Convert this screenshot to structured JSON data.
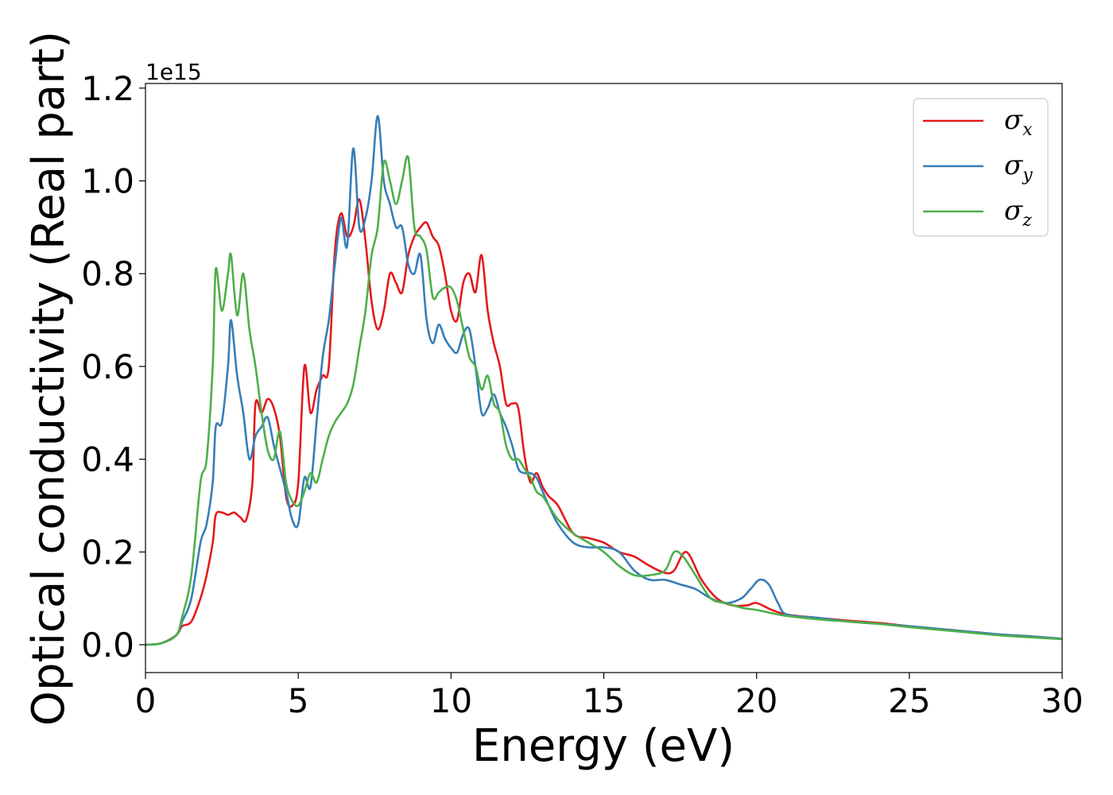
{
  "chart_data": {
    "type": "line",
    "title": "",
    "xlabel": "Energy (eV)",
    "ylabel": "Optical conductivity (Real part)",
    "y_offset_label": "1e15",
    "xlim": [
      0,
      30
    ],
    "ylim": [
      -0.06,
      1.21
    ],
    "xticks": [
      0,
      5,
      10,
      15,
      20,
      25,
      30
    ],
    "xtick_labels": [
      "0",
      "5",
      "10",
      "15",
      "20",
      "25",
      "30"
    ],
    "yticks": [
      0.0,
      0.2,
      0.4,
      0.6,
      0.8,
      1.0,
      1.2
    ],
    "ytick_labels": [
      "0.0",
      "0.2",
      "0.4",
      "0.6",
      "0.8",
      "1.0",
      "1.2"
    ],
    "grid": false,
    "legend_position": "top-right",
    "series": [
      {
        "name": "σx",
        "symbol": "σ",
        "subscript": "x",
        "color": "#e41a1c",
        "x": [
          0,
          0.5,
          1.0,
          1.2,
          1.5,
          1.8,
          2.0,
          2.2,
          2.3,
          2.5,
          2.7,
          2.9,
          3.1,
          3.3,
          3.5,
          3.6,
          3.8,
          4.0,
          4.2,
          4.4,
          4.6,
          4.8,
          5.0,
          5.2,
          5.4,
          5.6,
          5.8,
          6.0,
          6.2,
          6.4,
          6.6,
          6.8,
          7.0,
          7.2,
          7.4,
          7.6,
          7.8,
          8.0,
          8.2,
          8.4,
          8.6,
          8.8,
          9.0,
          9.2,
          9.4,
          9.6,
          9.8,
          10.0,
          10.2,
          10.4,
          10.6,
          10.8,
          11.0,
          11.2,
          11.4,
          11.6,
          11.8,
          12.0,
          12.2,
          12.4,
          12.6,
          12.8,
          13.0,
          13.2,
          13.5,
          14.0,
          14.5,
          15.0,
          15.5,
          16.0,
          16.5,
          17.0,
          17.3,
          17.7,
          18.2,
          18.7,
          19.2,
          19.7,
          20.0,
          20.5,
          21.0,
          22.0,
          23.0,
          24.0,
          25.0,
          26.0,
          27.0,
          28.0,
          29.0,
          30.0
        ],
        "values": [
          0.0,
          0.003,
          0.02,
          0.04,
          0.05,
          0.1,
          0.15,
          0.22,
          0.28,
          0.285,
          0.28,
          0.285,
          0.275,
          0.27,
          0.35,
          0.52,
          0.5,
          0.53,
          0.51,
          0.45,
          0.32,
          0.3,
          0.35,
          0.6,
          0.5,
          0.55,
          0.58,
          0.6,
          0.85,
          0.93,
          0.88,
          0.9,
          0.96,
          0.87,
          0.74,
          0.68,
          0.72,
          0.8,
          0.78,
          0.76,
          0.84,
          0.88,
          0.9,
          0.91,
          0.88,
          0.86,
          0.8,
          0.72,
          0.7,
          0.78,
          0.8,
          0.76,
          0.84,
          0.72,
          0.65,
          0.6,
          0.52,
          0.52,
          0.51,
          0.41,
          0.35,
          0.37,
          0.34,
          0.32,
          0.3,
          0.24,
          0.23,
          0.22,
          0.2,
          0.19,
          0.17,
          0.155,
          0.16,
          0.2,
          0.14,
          0.1,
          0.085,
          0.085,
          0.09,
          0.075,
          0.065,
          0.058,
          0.052,
          0.047,
          0.04,
          0.034,
          0.028,
          0.022,
          0.018,
          0.013
        ]
      },
      {
        "name": "σy",
        "symbol": "σ",
        "subscript": "y",
        "color": "#377eb8",
        "x": [
          0,
          0.5,
          1.0,
          1.2,
          1.5,
          1.8,
          2.0,
          2.2,
          2.3,
          2.5,
          2.7,
          2.8,
          3.0,
          3.2,
          3.4,
          3.6,
          3.8,
          4.0,
          4.2,
          4.4,
          4.6,
          4.8,
          5.0,
          5.2,
          5.4,
          5.6,
          5.8,
          6.0,
          6.2,
          6.4,
          6.6,
          6.8,
          7.0,
          7.2,
          7.4,
          7.6,
          7.8,
          8.0,
          8.2,
          8.4,
          8.6,
          8.8,
          9.0,
          9.2,
          9.4,
          9.6,
          9.8,
          10.0,
          10.2,
          10.4,
          10.6,
          10.8,
          11.0,
          11.2,
          11.4,
          11.6,
          11.8,
          12.0,
          12.2,
          12.4,
          12.6,
          12.8,
          13.0,
          13.2,
          13.5,
          14.0,
          14.5,
          15.0,
          15.5,
          16.0,
          16.5,
          17.0,
          17.5,
          18.0,
          18.5,
          19.0,
          19.5,
          19.8,
          20.1,
          20.4,
          20.7,
          21.0,
          22.0,
          23.0,
          24.0,
          25.0,
          26.0,
          27.0,
          28.0,
          29.0,
          30.0
        ],
        "values": [
          0.0,
          0.003,
          0.02,
          0.05,
          0.1,
          0.22,
          0.26,
          0.35,
          0.47,
          0.48,
          0.6,
          0.7,
          0.58,
          0.5,
          0.4,
          0.45,
          0.47,
          0.49,
          0.43,
          0.38,
          0.33,
          0.27,
          0.26,
          0.36,
          0.34,
          0.48,
          0.62,
          0.7,
          0.82,
          0.92,
          0.86,
          1.07,
          0.9,
          0.92,
          1.0,
          1.14,
          1.0,
          0.95,
          0.9,
          0.9,
          0.82,
          0.8,
          0.84,
          0.7,
          0.65,
          0.69,
          0.66,
          0.64,
          0.63,
          0.67,
          0.68,
          0.6,
          0.5,
          0.51,
          0.54,
          0.5,
          0.47,
          0.43,
          0.38,
          0.37,
          0.37,
          0.36,
          0.33,
          0.3,
          0.26,
          0.22,
          0.21,
          0.21,
          0.2,
          0.16,
          0.14,
          0.14,
          0.13,
          0.12,
          0.1,
          0.09,
          0.1,
          0.12,
          0.14,
          0.13,
          0.09,
          0.065,
          0.058,
          0.05,
          0.045,
          0.04,
          0.034,
          0.028,
          0.022,
          0.018,
          0.013
        ]
      },
      {
        "name": "σz",
        "symbol": "σ",
        "subscript": "z",
        "color": "#4daf4a",
        "x": [
          0,
          0.5,
          1.0,
          1.2,
          1.5,
          1.8,
          2.0,
          2.2,
          2.3,
          2.5,
          2.7,
          2.8,
          3.0,
          3.2,
          3.4,
          3.6,
          3.8,
          4.0,
          4.2,
          4.4,
          4.6,
          4.8,
          5.0,
          5.2,
          5.4,
          5.6,
          5.8,
          6.0,
          6.2,
          6.4,
          6.6,
          6.8,
          7.0,
          7.2,
          7.4,
          7.6,
          7.8,
          8.0,
          8.2,
          8.4,
          8.6,
          8.8,
          9.0,
          9.2,
          9.4,
          9.6,
          9.8,
          10.0,
          10.2,
          10.4,
          10.6,
          10.8,
          11.0,
          11.2,
          11.4,
          11.6,
          11.8,
          12.0,
          12.2,
          12.4,
          12.6,
          12.8,
          13.0,
          13.2,
          13.5,
          14.0,
          14.5,
          15.0,
          15.5,
          16.0,
          16.5,
          17.0,
          17.3,
          17.6,
          18.0,
          18.5,
          19.0,
          19.5,
          20.0,
          20.5,
          21.0,
          22.0,
          23.0,
          24.0,
          25.0,
          26.0,
          27.0,
          28.0,
          29.0,
          30.0
        ],
        "values": [
          0.0,
          0.003,
          0.02,
          0.06,
          0.15,
          0.35,
          0.4,
          0.6,
          0.81,
          0.72,
          0.8,
          0.84,
          0.71,
          0.8,
          0.68,
          0.6,
          0.5,
          0.42,
          0.4,
          0.46,
          0.35,
          0.31,
          0.3,
          0.33,
          0.37,
          0.35,
          0.4,
          0.45,
          0.48,
          0.5,
          0.52,
          0.56,
          0.64,
          0.72,
          0.84,
          0.9,
          1.04,
          1.0,
          0.95,
          1.0,
          1.05,
          0.9,
          0.88,
          0.85,
          0.75,
          0.76,
          0.77,
          0.77,
          0.74,
          0.68,
          0.62,
          0.6,
          0.55,
          0.58,
          0.52,
          0.5,
          0.43,
          0.4,
          0.4,
          0.38,
          0.36,
          0.33,
          0.32,
          0.3,
          0.27,
          0.24,
          0.22,
          0.2,
          0.17,
          0.15,
          0.15,
          0.16,
          0.2,
          0.19,
          0.15,
          0.1,
          0.09,
          0.08,
          0.075,
          0.068,
          0.062,
          0.055,
          0.05,
          0.045,
          0.038,
          0.032,
          0.026,
          0.02,
          0.016,
          0.012
        ]
      }
    ]
  }
}
